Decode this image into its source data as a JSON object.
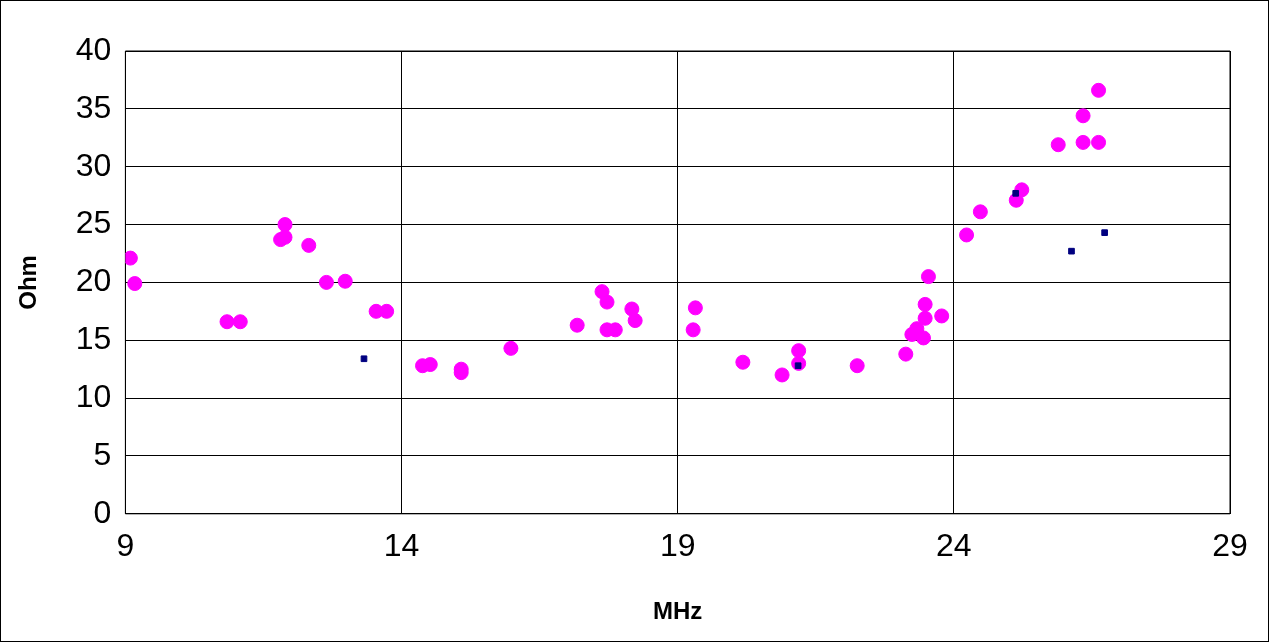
{
  "chart_data": {
    "type": "scatter",
    "xlabel": "MHz",
    "ylabel": "Ohm",
    "xlim": [
      9,
      29
    ],
    "xticks": [
      9,
      14,
      19,
      24,
      29
    ],
    "ylim": [
      0,
      40
    ],
    "yticks": [
      0,
      5,
      10,
      15,
      20,
      25,
      30,
      35,
      40
    ],
    "grid": true,
    "legend": false,
    "marker": "circle",
    "series": [
      {
        "color": "#ff00ff",
        "x": [
          9.09,
          9.17,
          10.84,
          11.08,
          11.81,
          11.89,
          11.89,
          12.32,
          12.64,
          12.98,
          13.54,
          13.73,
          14.38,
          14.52,
          15.08,
          15.08,
          15.98,
          17.18,
          17.63,
          17.72,
          17.72,
          17.87,
          18.17,
          18.23,
          19.32,
          19.28,
          20.18,
          20.89,
          21.19,
          21.19,
          22.25,
          23.13,
          23.24,
          23.33,
          23.45,
          23.48,
          23.48,
          23.54,
          23.78,
          24.23,
          24.48,
          25.13,
          25.23,
          25.89,
          26.34,
          26.34,
          26.62,
          26.62
        ],
        "values": [
          22.1,
          19.9,
          16.6,
          16.6,
          23.7,
          23.9,
          25.0,
          23.2,
          20.0,
          20.1,
          17.5,
          17.5,
          12.8,
          12.9,
          12.5,
          12.2,
          14.3,
          16.3,
          19.2,
          18.3,
          15.9,
          15.9,
          17.7,
          16.7,
          17.8,
          15.9,
          13.1,
          12.0,
          14.1,
          13.0,
          12.8,
          13.8,
          15.5,
          16.0,
          15.2,
          16.9,
          18.1,
          20.5,
          17.1,
          24.1,
          26.1,
          27.1,
          28.0,
          31.9,
          32.1,
          34.4,
          32.1,
          36.6
        ]
      },
      {
        "color": "#000080",
        "marker": "square",
        "x": [
          13.32,
          21.18,
          25.12,
          26.13,
          26.73
        ],
        "values": [
          13.4,
          12.8,
          27.7,
          22.7,
          24.3
        ]
      }
    ]
  }
}
